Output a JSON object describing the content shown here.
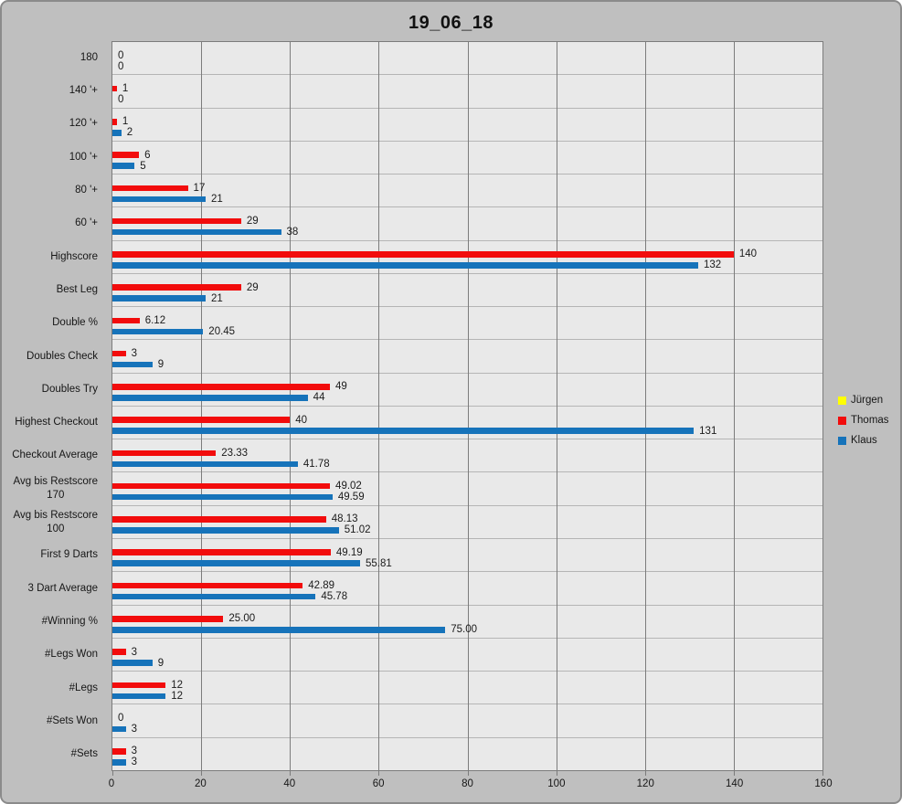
{
  "chart_data": {
    "type": "bar",
    "orientation": "horizontal",
    "title": "19_06_18",
    "xlabel": "",
    "ylabel": "",
    "xlim": [
      0,
      160
    ],
    "xticks": [
      0,
      20,
      40,
      60,
      80,
      100,
      120,
      140,
      160
    ],
    "grid": true,
    "legend_position": "right",
    "plot_background": "#e9e9e9",
    "chart_background": "#bfbfbf",
    "categories": [
      "180",
      "140 '+",
      "120 '+",
      "100 '+",
      "80 '+",
      "60 '+",
      "Highscore",
      "Best Leg",
      "Double %",
      "Doubles Check",
      "Doubles Try",
      "Highest Checkout",
      "Checkout Average",
      "Avg bis Restscore\n170",
      "Avg bis Restscore\n100",
      "First 9 Darts",
      "3 Dart Average",
      "#Winning %",
      "#Legs Won",
      "#Legs",
      "#Sets Won",
      "#Sets"
    ],
    "series": [
      {
        "id": "juergen",
        "name": "Jürgen",
        "color": "#ffff00",
        "values": []
      },
      {
        "id": "thomas",
        "name": "Thomas",
        "color": "#f20c0c",
        "values": [
          0,
          1,
          1,
          6,
          17,
          29,
          140,
          29,
          6.12,
          3,
          49,
          40,
          23.33,
          49.02,
          48.13,
          49.19,
          42.89,
          25,
          3,
          12,
          0,
          3
        ],
        "labels": [
          "0",
          "1",
          "1",
          "6",
          "17",
          "29",
          "140",
          "29",
          "6.12",
          "3",
          "49",
          "40",
          "23.33",
          "49.02",
          "48.13",
          "49.19",
          "42.89",
          "25.00",
          "3",
          "12",
          "0",
          "3"
        ]
      },
      {
        "id": "klaus",
        "name": "Klaus",
        "color": "#1673ba",
        "values": [
          0,
          0,
          2,
          5,
          21,
          38,
          132,
          21,
          20.45,
          9,
          44,
          131,
          41.78,
          49.59,
          51.02,
          55.81,
          45.78,
          75,
          9,
          12,
          3,
          3
        ],
        "labels": [
          "0",
          "0",
          "2",
          "5",
          "21",
          "38",
          "132",
          "21",
          "20.45",
          "9",
          "44",
          "131",
          "41.78",
          "49.59",
          "51.02",
          "55.81",
          "45.78",
          "75.00",
          "9",
          "12",
          "3",
          "3"
        ]
      }
    ]
  },
  "legend": {
    "items": [
      {
        "id": "juergen",
        "label": "Jürgen",
        "color": "#ffff00"
      },
      {
        "id": "thomas",
        "label": "Thomas",
        "color": "#f20c0c"
      },
      {
        "id": "klaus",
        "label": "Klaus",
        "color": "#1673ba"
      }
    ]
  }
}
